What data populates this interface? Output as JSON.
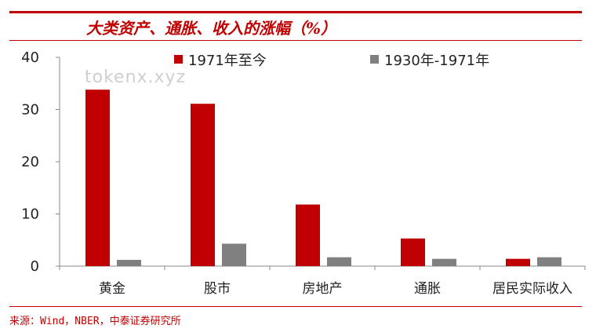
{
  "title": "大类资产、通胀、收入的涨幅（%）",
  "watermark": "tokenx.xyz",
  "source": "来源：Wind，NBER，中泰证券研究所",
  "colors": {
    "accent": "#c00000",
    "series1": "#c00000",
    "series2": "#808080"
  },
  "chart_data": {
    "type": "bar",
    "categories": [
      "黄金",
      "股市",
      "房地产",
      "通胀",
      "居民实际收入"
    ],
    "series": [
      {
        "name": "1971年至今",
        "values": [
          33.8,
          31.1,
          11.8,
          5.3,
          1.4
        ]
      },
      {
        "name": "1930年-1971年",
        "values": [
          1.2,
          4.3,
          1.7,
          1.4,
          1.7
        ]
      }
    ],
    "ylim": [
      0,
      40
    ],
    "yticks": [
      "0",
      "10",
      "20",
      "30",
      "40"
    ],
    "legend_position": "top",
    "grid": false
  }
}
